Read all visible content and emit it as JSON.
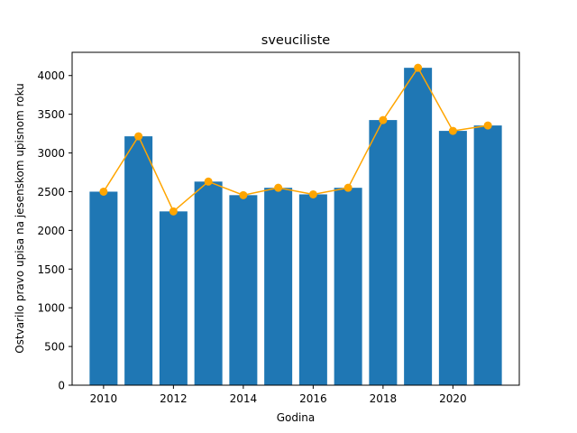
{
  "chart_data": {
    "type": "bar",
    "title": "sveuciliste",
    "xlabel": "Godina",
    "ylabel": "Ostvarilo pravo upisa na jesenskom upisnom roku",
    "x": [
      2010,
      2011,
      2012,
      2013,
      2014,
      2015,
      2016,
      2017,
      2018,
      2019,
      2020,
      2021
    ],
    "values": [
      2500,
      3215,
      2245,
      2630,
      2455,
      2550,
      2465,
      2550,
      3425,
      4100,
      3285,
      3355
    ],
    "line_overlay": {
      "values": [
        2500,
        3215,
        2245,
        2630,
        2455,
        2550,
        2465,
        2550,
        3425,
        4100,
        3285,
        3355
      ]
    },
    "xlim": [
      2009.1,
      2021.9
    ],
    "ylim": [
      0,
      4300
    ],
    "xticks": [
      2010,
      2012,
      2014,
      2016,
      2018,
      2020
    ],
    "yticks": [
      0,
      500,
      1000,
      1500,
      2000,
      2500,
      3000,
      3500,
      4000
    ],
    "bar_color": "#1f77b4",
    "line_color": "#ffa500",
    "grid": false,
    "legend": "none"
  }
}
